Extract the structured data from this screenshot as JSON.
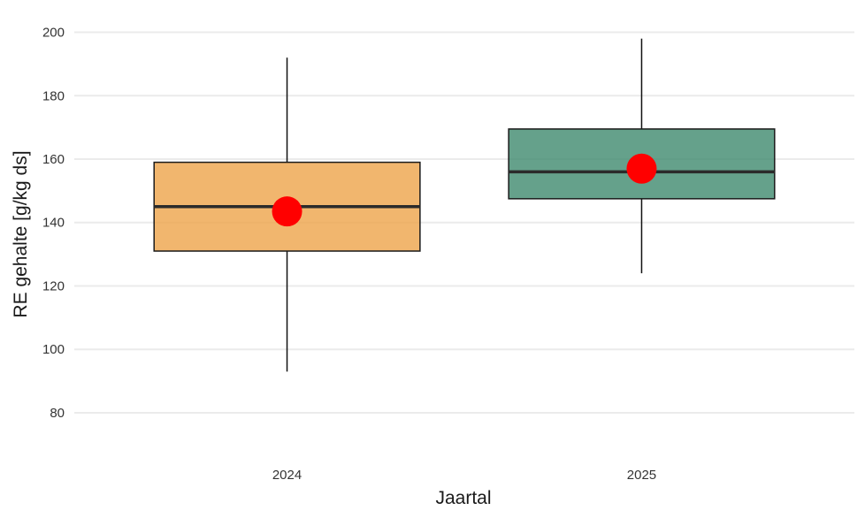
{
  "chart_data": {
    "type": "boxplot",
    "xlabel": "Jaartal",
    "ylabel": "RE gehalte [g/kg ds]",
    "ylim": [
      68,
      206
    ],
    "yticks": [
      80,
      100,
      120,
      140,
      160,
      180,
      200
    ],
    "grid": "horizontal",
    "legend": "none",
    "categories": [
      "2024",
      "2025"
    ],
    "boxes": [
      {
        "category": "2024",
        "min": 93,
        "q1": 131,
        "median": 145,
        "q3": 159,
        "max": 192,
        "mean": 143.5,
        "fill": "#eea44a"
      },
      {
        "category": "2025",
        "min": 124,
        "q1": 147.5,
        "median": 156,
        "q3": 169.5,
        "max": 198,
        "mean": 157,
        "fill": "#3f8a6e"
      }
    ],
    "mean_marker_color": "#ff0000"
  }
}
